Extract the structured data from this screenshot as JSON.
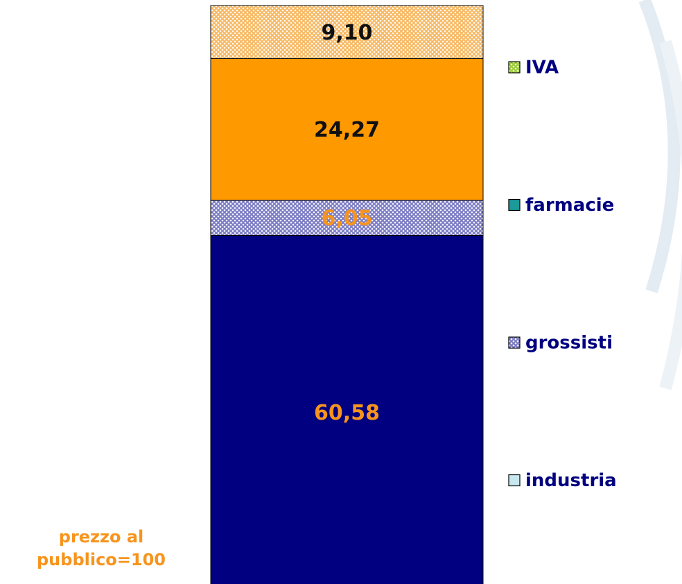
{
  "chart_data": {
    "type": "stacked_bar",
    "ylim": [
      0,
      100
    ],
    "annotation": [
      "prezzo al",
      "pubblico=100"
    ],
    "annotation_color": "#f7941d",
    "series": [
      {
        "name": "industria",
        "color": "#000080",
        "legend_color": "#c6e8ee",
        "pattern": false,
        "label_color": "#f7941d",
        "values": [
          60.58
        ],
        "value_labels": [
          "60,58"
        ]
      },
      {
        "name": "grossisti",
        "color": "#7a7ac4",
        "legend_color": "#7a7ac4",
        "pattern": true,
        "label_color": "#f7941d",
        "values": [
          6.05
        ],
        "value_labels": [
          "6,05"
        ]
      },
      {
        "name": "farmacie",
        "color": "#ff9900",
        "legend_color": "#1a9a9a",
        "pattern": false,
        "label_color": "#111111",
        "values": [
          24.27
        ],
        "value_labels": [
          "24,27"
        ]
      },
      {
        "name": "IVA",
        "color": "#f8b860",
        "legend_color": "#99cc33",
        "pattern": true,
        "label_color": "#111111",
        "values": [
          9.1
        ],
        "value_labels": [
          "9,10"
        ]
      }
    ]
  }
}
